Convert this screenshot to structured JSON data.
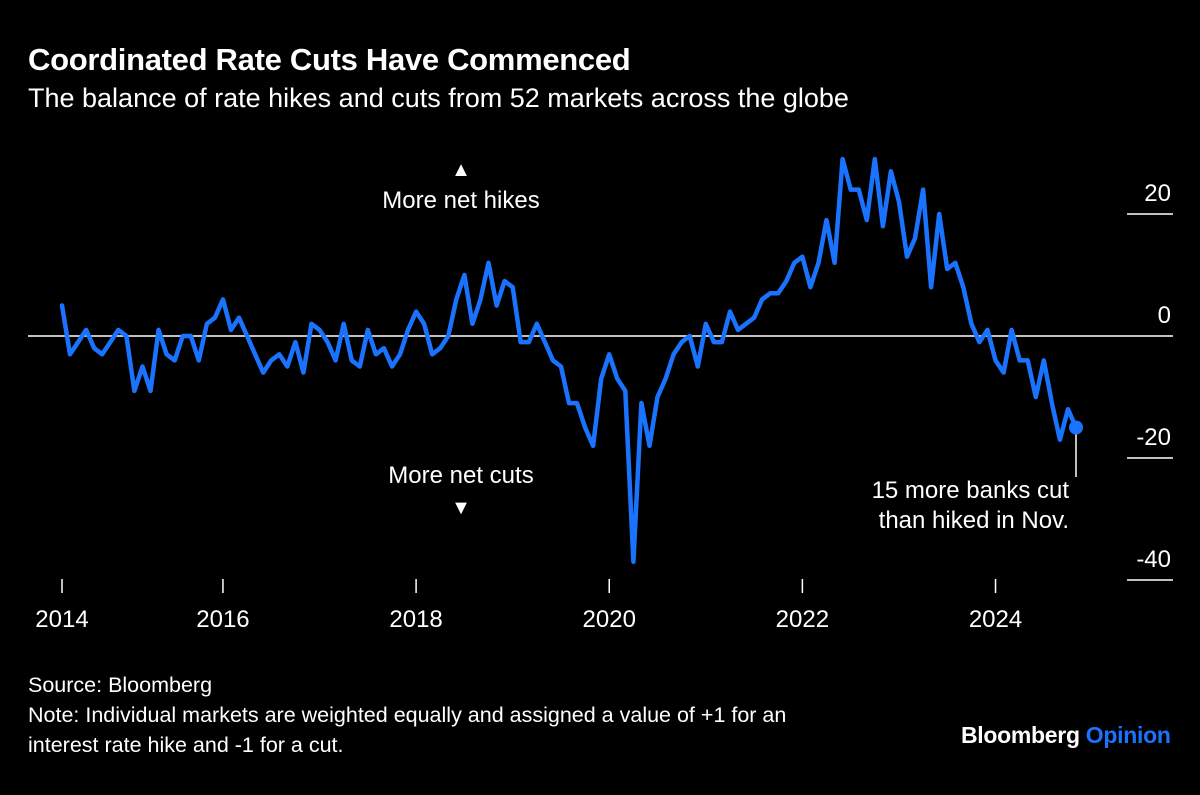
{
  "header": {
    "title": "Coordinated Rate Cuts Have Commenced",
    "subtitle": "The balance of rate hikes and cuts from 52 markets across the globe"
  },
  "footer": {
    "source": "Source: Bloomberg",
    "note_line1": "Note: Individual markets are weighted equally and assigned a value of +1 for an",
    "note_line2": "interest rate hike and -1 for a cut."
  },
  "logo": {
    "brand": "Bloomberg",
    "product": "Opinion"
  },
  "colors": {
    "background": "#000000",
    "series": "#1a73ff",
    "text": "#ffffff",
    "zero_line": "#ffffff"
  },
  "chart_data": {
    "type": "line",
    "title": "Coordinated Rate Cuts Have Commenced",
    "subtitle": "The balance of rate hikes and cuts from 52 markets across the globe",
    "xlabel": "",
    "ylabel": "",
    "ylim": [
      -40,
      30
    ],
    "yticks": [
      20,
      0,
      -20,
      -40
    ],
    "ytick_labels": [
      "20",
      "0",
      "-20",
      "-40"
    ],
    "yaxis_position": "right",
    "xticks": [
      "2014-05",
      "2016-01",
      "2018-01",
      "2020-01",
      "2022-01",
      "2024-01"
    ],
    "xtick_labels": [
      "2014",
      "2016",
      "2018",
      "2020",
      "2022",
      "2024"
    ],
    "grid": false,
    "annotations": {
      "up_label": "More net hikes",
      "up_arrow": "▲",
      "down_label": "More net cuts",
      "down_arrow": "▼",
      "last_point_line1": "15 more banks cut",
      "last_point_line2": "than hiked in Nov."
    },
    "x": [
      "2014-05",
      "2014-06",
      "2014-07",
      "2014-08",
      "2014-09",
      "2014-10",
      "2014-11",
      "2014-12",
      "2015-01",
      "2015-02",
      "2015-03",
      "2015-04",
      "2015-05",
      "2015-06",
      "2015-07",
      "2015-08",
      "2015-09",
      "2015-10",
      "2015-11",
      "2015-12",
      "2016-01",
      "2016-02",
      "2016-03",
      "2016-04",
      "2016-05",
      "2016-06",
      "2016-07",
      "2016-08",
      "2016-09",
      "2016-10",
      "2016-11",
      "2016-12",
      "2017-01",
      "2017-02",
      "2017-03",
      "2017-04",
      "2017-05",
      "2017-06",
      "2017-07",
      "2017-08",
      "2017-09",
      "2017-10",
      "2017-11",
      "2017-12",
      "2018-01",
      "2018-02",
      "2018-03",
      "2018-04",
      "2018-05",
      "2018-06",
      "2018-07",
      "2018-08",
      "2018-09",
      "2018-10",
      "2018-11",
      "2018-12",
      "2019-01",
      "2019-02",
      "2019-03",
      "2019-04",
      "2019-05",
      "2019-06",
      "2019-07",
      "2019-08",
      "2019-09",
      "2019-10",
      "2019-11",
      "2019-12",
      "2020-01",
      "2020-02",
      "2020-03",
      "2020-04",
      "2020-05",
      "2020-06",
      "2020-07",
      "2020-08",
      "2020-09",
      "2020-10",
      "2020-11",
      "2020-12",
      "2021-01",
      "2021-02",
      "2021-03",
      "2021-04",
      "2021-05",
      "2021-06",
      "2021-07",
      "2021-08",
      "2021-09",
      "2021-10",
      "2021-11",
      "2021-12",
      "2022-01",
      "2022-02",
      "2022-03",
      "2022-04",
      "2022-05",
      "2022-06",
      "2022-07",
      "2022-08",
      "2022-09",
      "2022-10",
      "2022-11",
      "2022-12",
      "2023-01",
      "2023-02",
      "2023-03",
      "2023-04",
      "2023-05",
      "2023-06",
      "2023-07",
      "2023-08",
      "2023-09",
      "2023-10",
      "2023-11",
      "2023-12",
      "2024-01",
      "2024-02",
      "2024-03",
      "2024-04",
      "2024-05",
      "2024-06",
      "2024-07",
      "2024-08",
      "2024-09",
      "2024-10",
      "2024-11"
    ],
    "series": [
      {
        "values": [
          5,
          -3,
          -1,
          1,
          -2,
          -3,
          -1,
          1,
          0,
          -9,
          -5,
          -9,
          1,
          -3,
          -4,
          0,
          0,
          -4,
          2,
          3,
          6,
          1,
          3,
          0,
          -3,
          -6,
          -4,
          -3,
          -5,
          -1,
          -6,
          2,
          1,
          -1,
          -4,
          2,
          -4,
          -5,
          1,
          -3,
          -2,
          -5,
          -3,
          1,
          4,
          2,
          -3,
          -2,
          0,
          6,
          10,
          2,
          6,
          12,
          5,
          9,
          8,
          -1,
          -1,
          2,
          -1,
          -4,
          -5,
          -11,
          -11,
          -15,
          -18,
          -7,
          -3,
          -7,
          -9,
          -37,
          -11,
          -18,
          -10,
          -7,
          -3,
          -1,
          0,
          -5,
          2,
          -1,
          -1,
          4,
          1,
          2,
          3,
          6,
          7,
          7,
          9,
          12,
          13,
          8,
          12,
          19,
          12,
          29,
          24,
          24,
          19,
          29,
          18,
          27,
          22,
          13,
          16,
          24,
          8,
          20,
          11,
          12,
          8,
          2,
          -1,
          1,
          -4,
          -6,
          1,
          -4,
          -4,
          -10,
          -4,
          -11,
          -17,
          -12,
          -15
        ]
      }
    ],
    "highlight_last_point": true
  }
}
